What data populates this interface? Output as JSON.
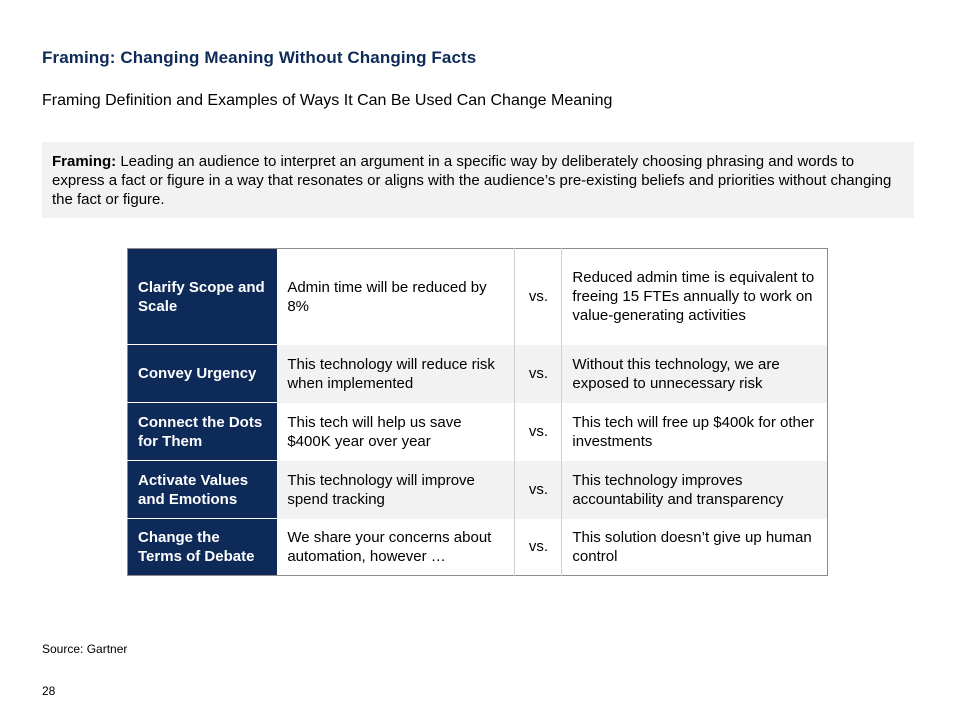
{
  "slide": {
    "title": "Framing: Changing Meaning Without Changing Facts",
    "subtitle": "Framing Definition and Examples of Ways It Can Be Used Can Change Meaning"
  },
  "definition": {
    "term": "Framing:",
    "text": " Leading an audience to interpret an argument in a specific way by deliberately choosing phrasing and words to express a fact or figure in a way that resonates or aligns with the audience’s pre-existing beliefs and priorities without changing the fact or figure."
  },
  "table": {
    "rows": [
      {
        "label": "Clarify Scope and Scale",
        "before": "Admin time will be reduced by 8%",
        "vs": "vs.",
        "after": "Reduced admin time is equivalent to freeing 15 FTEs annually to work on value-generating activities"
      },
      {
        "label": "Convey Urgency",
        "before": "This technology will reduce risk when implemented",
        "vs": "vs.",
        "after": "Without this technology, we are exposed to unnecessary risk"
      },
      {
        "label": "Connect the Dots for Them",
        "before": "This tech will help us save $400K year over year",
        "vs": "vs.",
        "after": "This tech will free up $400k for other investments"
      },
      {
        "label": "Activate Values and Emotions",
        "before": "This technology will improve spend tracking",
        "vs": "vs.",
        "after": "This technology improves accountability and transparency"
      },
      {
        "label": "Change the Terms of Debate",
        "before": "We share your concerns about automation, however …",
        "vs": "vs.",
        "after": "This solution doesn’t give up human control"
      }
    ]
  },
  "footer": {
    "source": "Source: Gartner",
    "page_number": "28"
  },
  "colors": {
    "navy": "#0e2a58",
    "shade": "#f2f2f2"
  }
}
